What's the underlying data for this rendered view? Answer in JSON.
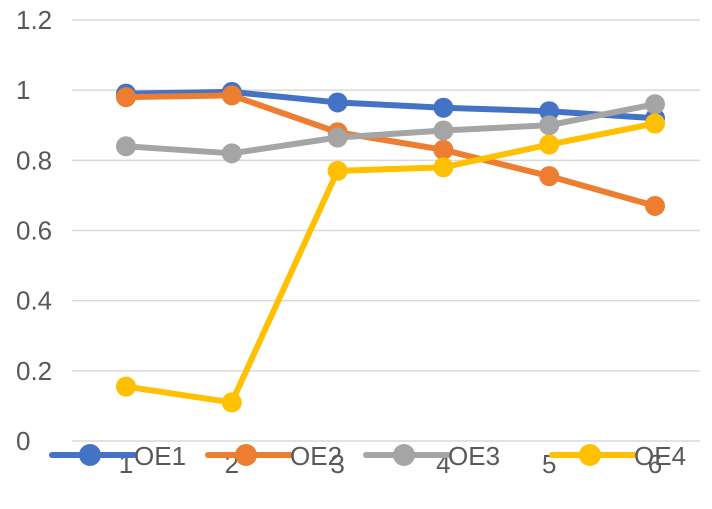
{
  "chart_data": {
    "type": "line",
    "title": "",
    "xlabel": "",
    "ylabel": "",
    "categories": [
      "1",
      "2",
      "3",
      "4",
      "5",
      "6"
    ],
    "ylim": [
      0,
      1.2
    ],
    "y_ticks": [
      0,
      0.2,
      0.4,
      0.6,
      0.8,
      1,
      1.2
    ],
    "y_tick_labels": [
      "0",
      "0.2",
      "0.4",
      "0.6",
      "0.8",
      "1",
      "1.2"
    ],
    "grid": "horizontal",
    "legend_position": "bottom",
    "series": [
      {
        "name": "OE1",
        "color": "#4472C4",
        "values": [
          0.99,
          0.995,
          0.965,
          0.95,
          0.94,
          0.92
        ]
      },
      {
        "name": "OE2",
        "color": "#ED7D31",
        "values": [
          0.98,
          0.985,
          0.88,
          0.83,
          0.755,
          0.67
        ]
      },
      {
        "name": "OE3",
        "color": "#A5A5A5",
        "values": [
          0.84,
          0.82,
          0.865,
          0.885,
          0.9,
          0.96
        ]
      },
      {
        "name": "OE4",
        "color": "#FFC000",
        "values": [
          0.155,
          0.11,
          0.77,
          0.78,
          0.845,
          0.905
        ]
      }
    ]
  }
}
